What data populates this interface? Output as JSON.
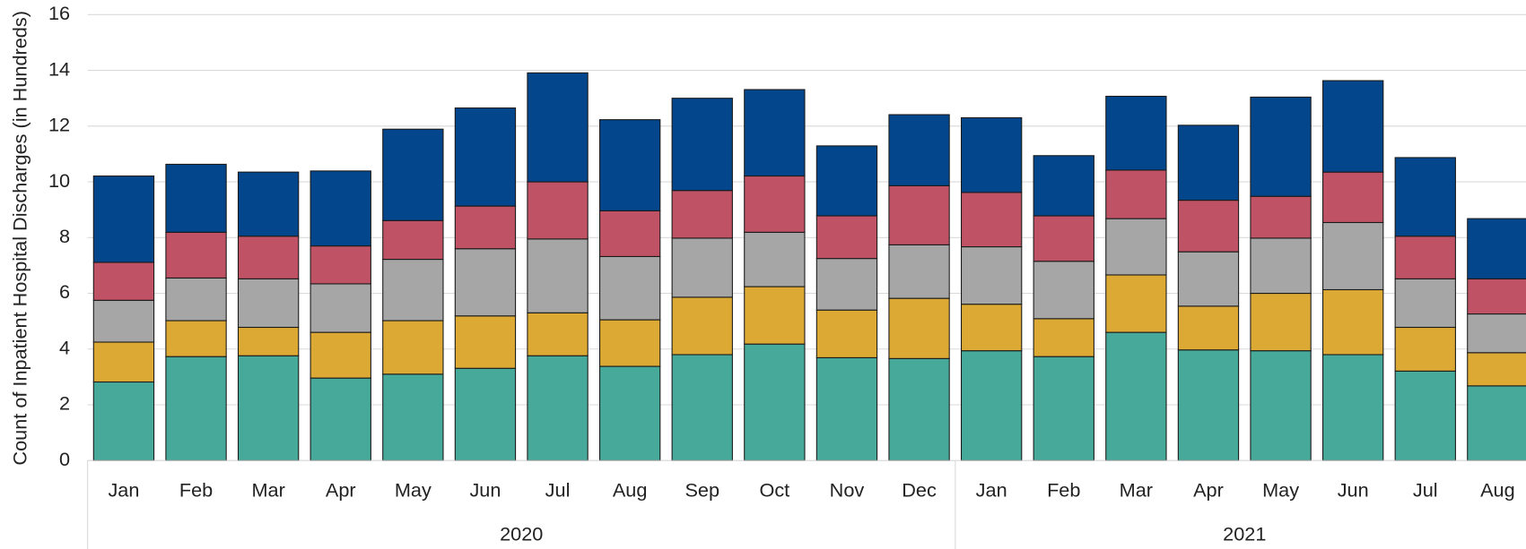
{
  "chart_data": {
    "type": "stacked_bar",
    "y_label": "Count of Inpatient Hospital Discharges (in Hundreds)",
    "category_groups": [
      {
        "label": "2020",
        "categories": [
          "Jan",
          "Feb",
          "Mar",
          "Apr",
          "May",
          "Jun",
          "Jul",
          "Aug",
          "Sep",
          "Oct",
          "Nov",
          "Dec"
        ]
      },
      {
        "label": "2021",
        "categories": [
          "Jan",
          "Feb",
          "Mar",
          "Apr",
          "May",
          "Jun",
          "Jul",
          "Aug"
        ]
      }
    ],
    "series": [
      {
        "color": "#46a99a",
        "values": [
          2.82,
          3.73,
          3.76,
          2.96,
          3.1,
          3.31,
          3.76,
          3.38,
          3.8,
          4.18,
          3.69,
          3.66,
          3.94,
          3.73,
          4.6,
          3.97,
          3.94,
          3.8,
          3.21,
          2.68
        ]
      },
      {
        "color": "#dca934",
        "values": [
          1.43,
          1.29,
          1.02,
          1.64,
          1.92,
          1.88,
          1.54,
          1.67,
          2.06,
          2.06,
          1.71,
          2.16,
          1.67,
          1.36,
          2.06,
          1.57,
          2.06,
          2.33,
          1.57,
          1.19
        ]
      },
      {
        "color": "#a6a6a6",
        "values": [
          1.5,
          1.53,
          1.74,
          1.74,
          2.2,
          2.41,
          2.65,
          2.27,
          2.12,
          1.95,
          1.85,
          1.92,
          2.06,
          2.06,
          2.02,
          1.95,
          1.98,
          2.41,
          1.74,
          1.39
        ]
      },
      {
        "color": "#bf5264",
        "values": [
          1.36,
          1.64,
          1.53,
          1.36,
          1.39,
          1.53,
          2.05,
          1.64,
          1.71,
          2.02,
          1.53,
          2.12,
          1.95,
          1.63,
          1.74,
          1.85,
          1.5,
          1.81,
          1.53,
          1.26
        ]
      },
      {
        "color": "#03468c",
        "values": [
          3.1,
          2.44,
          2.3,
          2.69,
          3.28,
          3.52,
          3.91,
          3.27,
          3.31,
          3.1,
          2.51,
          2.55,
          2.68,
          2.16,
          2.65,
          2.69,
          3.56,
          3.28,
          2.82,
          2.16
        ]
      }
    ],
    "ylim": [
      0,
      16
    ],
    "yticks": [
      0,
      2,
      4,
      6,
      8,
      10,
      12,
      14,
      16
    ],
    "grid": true
  }
}
